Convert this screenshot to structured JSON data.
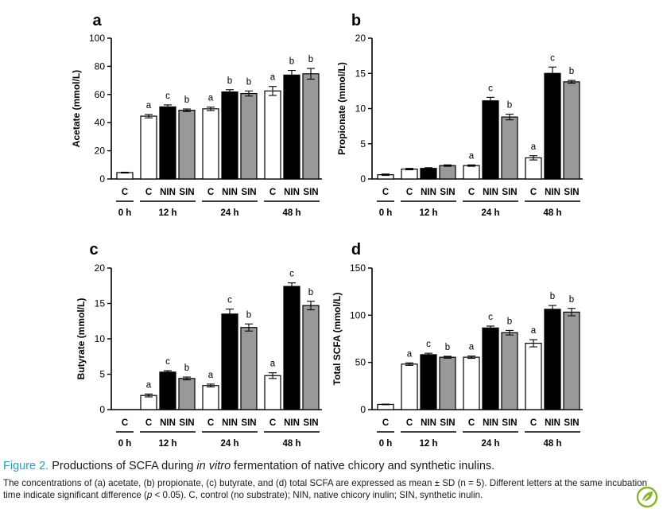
{
  "chart_data": [
    {
      "type": "bar",
      "panel_label": "a",
      "ylabel": "Acetate (mmol/L)",
      "ylim": [
        0,
        100
      ],
      "yticks": [
        0,
        20,
        40,
        60,
        80,
        100
      ],
      "bars": [
        {
          "cat": "C",
          "group": "0 h",
          "value": 4.5,
          "err": 0.3,
          "sig": ""
        },
        {
          "cat": "C",
          "group": "12 h",
          "value": 44.6,
          "err": 1.2,
          "sig": "a"
        },
        {
          "cat": "NIN",
          "group": "12 h",
          "value": 51.2,
          "err": 1.4,
          "sig": "c"
        },
        {
          "cat": "SIN",
          "group": "12 h",
          "value": 48.8,
          "err": 0.9,
          "sig": "b"
        },
        {
          "cat": "C",
          "group": "24 h",
          "value": 49.8,
          "err": 1.2,
          "sig": "a"
        },
        {
          "cat": "NIN",
          "group": "24 h",
          "value": 61.8,
          "err": 1.6,
          "sig": "b"
        },
        {
          "cat": "SIN",
          "group": "24 h",
          "value": 60.7,
          "err": 1.8,
          "sig": "b"
        },
        {
          "cat": "C",
          "group": "48 h",
          "value": 62.5,
          "err": 3.2,
          "sig": "a"
        },
        {
          "cat": "NIN",
          "group": "48 h",
          "value": 73.8,
          "err": 3.3,
          "sig": "b"
        },
        {
          "cat": "SIN",
          "group": "48 h",
          "value": 74.7,
          "err": 3.8,
          "sig": "b"
        }
      ]
    },
    {
      "type": "bar",
      "panel_label": "b",
      "ylabel": "Propionate (mmol/L)",
      "ylim": [
        0,
        20
      ],
      "yticks": [
        0,
        5,
        10,
        15,
        20
      ],
      "bars": [
        {
          "cat": "C",
          "group": "0 h",
          "value": 0.6,
          "err": 0.1,
          "sig": ""
        },
        {
          "cat": "C",
          "group": "12 h",
          "value": 1.4,
          "err": 0.1,
          "sig": ""
        },
        {
          "cat": "NIN",
          "group": "12 h",
          "value": 1.5,
          "err": 0.1,
          "sig": ""
        },
        {
          "cat": "SIN",
          "group": "12 h",
          "value": 1.9,
          "err": 0.1,
          "sig": ""
        },
        {
          "cat": "C",
          "group": "24 h",
          "value": 1.9,
          "err": 0.1,
          "sig": "a"
        },
        {
          "cat": "NIN",
          "group": "24 h",
          "value": 11.1,
          "err": 0.5,
          "sig": "c"
        },
        {
          "cat": "SIN",
          "group": "24 h",
          "value": 8.8,
          "err": 0.4,
          "sig": "b"
        },
        {
          "cat": "C",
          "group": "48 h",
          "value": 3.0,
          "err": 0.3,
          "sig": "a"
        },
        {
          "cat": "NIN",
          "group": "48 h",
          "value": 15.0,
          "err": 0.9,
          "sig": "c"
        },
        {
          "cat": "SIN",
          "group": "48 h",
          "value": 13.8,
          "err": 0.2,
          "sig": "b"
        }
      ]
    },
    {
      "type": "bar",
      "panel_label": "c",
      "ylabel": "Butyrate (mmol/L)",
      "ylim": [
        0,
        20
      ],
      "yticks": [
        0,
        5,
        10,
        15,
        20
      ],
      "bars": [
        {
          "cat": "C",
          "group": "0 h",
          "value": 0,
          "err": 0,
          "sig": ""
        },
        {
          "cat": "C",
          "group": "12 h",
          "value": 2.0,
          "err": 0.2,
          "sig": "a"
        },
        {
          "cat": "NIN",
          "group": "12 h",
          "value": 5.3,
          "err": 0.2,
          "sig": "c"
        },
        {
          "cat": "SIN",
          "group": "12 h",
          "value": 4.4,
          "err": 0.2,
          "sig": "b"
        },
        {
          "cat": "C",
          "group": "24 h",
          "value": 3.4,
          "err": 0.2,
          "sig": "a"
        },
        {
          "cat": "NIN",
          "group": "24 h",
          "value": 13.5,
          "err": 0.7,
          "sig": "c"
        },
        {
          "cat": "SIN",
          "group": "24 h",
          "value": 11.6,
          "err": 0.5,
          "sig": "b"
        },
        {
          "cat": "C",
          "group": "48 h",
          "value": 4.8,
          "err": 0.4,
          "sig": "a"
        },
        {
          "cat": "NIN",
          "group": "48 h",
          "value": 17.4,
          "err": 0.5,
          "sig": "c"
        },
        {
          "cat": "SIN",
          "group": "48 h",
          "value": 14.7,
          "err": 0.6,
          "sig": "b"
        }
      ]
    },
    {
      "type": "bar",
      "panel_label": "d",
      "ylabel": "Total SCFA (mmol/L)",
      "ylim": [
        0,
        150
      ],
      "yticks": [
        0,
        50,
        100,
        150
      ],
      "bars": [
        {
          "cat": "C",
          "group": "0 h",
          "value": 5.5,
          "err": 0.3,
          "sig": ""
        },
        {
          "cat": "C",
          "group": "12 h",
          "value": 48.2,
          "err": 1.3,
          "sig": "a"
        },
        {
          "cat": "NIN",
          "group": "12 h",
          "value": 58.2,
          "err": 1.5,
          "sig": "c"
        },
        {
          "cat": "SIN",
          "group": "12 h",
          "value": 55.5,
          "err": 1.0,
          "sig": "b"
        },
        {
          "cat": "C",
          "group": "24 h",
          "value": 55.5,
          "err": 1.2,
          "sig": "a"
        },
        {
          "cat": "NIN",
          "group": "24 h",
          "value": 86.5,
          "err": 2.0,
          "sig": "c"
        },
        {
          "cat": "SIN",
          "group": "24 h",
          "value": 81.5,
          "err": 2.4,
          "sig": "b"
        },
        {
          "cat": "C",
          "group": "48 h",
          "value": 70.3,
          "err": 3.8,
          "sig": "a"
        },
        {
          "cat": "NIN",
          "group": "48 h",
          "value": 106.3,
          "err": 4.0,
          "sig": "b"
        },
        {
          "cat": "SIN",
          "group": "48 h",
          "value": 103.3,
          "err": 3.9,
          "sig": "b"
        }
      ]
    }
  ],
  "style": {
    "bar_colors": {
      "C": "#ffffff",
      "NIN": "#000000",
      "SIN": "#999999"
    },
    "accent": "#2e9bb4",
    "logo_color": "#86b52f"
  },
  "caption": {
    "fig_label": "Figure 2.",
    "title_pre": " Productions of SCFA during ",
    "title_em": "in vitro",
    "title_post": " fermentation of native chicory and synthetic inulins.",
    "body_pre": "The concentrations of (a) acetate, (b) propionate, (c) butyrate, and (d) total SCFA are expressed as mean ± SD (n = 5). Different letters at the same incubation time indicate significant difference (",
    "body_em": "p",
    "body_post": " < 0.05). C, control (no substrate); NIN, native chicory inulin; SIN, synthetic inulin."
  },
  "logo_icon": "leaf-check-icon"
}
